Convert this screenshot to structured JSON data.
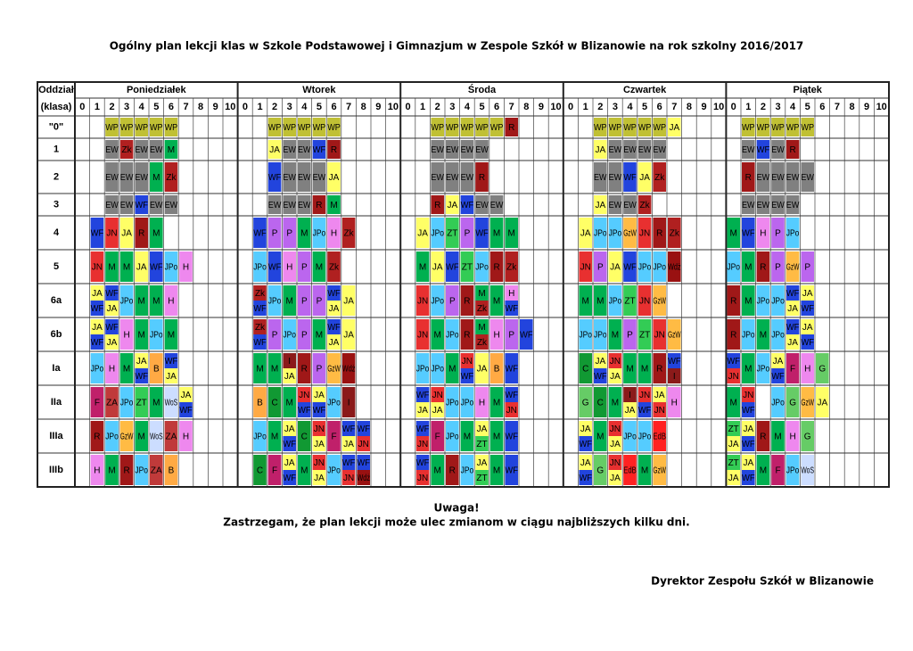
{
  "title": "Ogólny plan lekcji klas w Szkole Podstawowej i Gimnazjum w Zespole Szkół w Blizanowie na rok szkolny 2016/2017",
  "header": {
    "corner": [
      "Oddział",
      "(klasa)"
    ],
    "days": [
      "Poniedziałek",
      "Wtorek",
      "Środa",
      "Czwartek",
      "Piątek"
    ],
    "periods": [
      "0",
      "1",
      "2",
      "3",
      "4",
      "5",
      "6",
      "7",
      "8",
      "9",
      "10"
    ]
  },
  "colors": {
    "WP": "#c0c034",
    "EW": "#808080",
    "Zk": "#b02020",
    "M": "#00b050",
    "WF": "#2244dd",
    "JN": "#e83030",
    "JA": "#ffff66",
    "R": "#a01818",
    "JPo": "#55ccff",
    "H": "#ee88ee",
    "P": "#bb66ee",
    "ZT": "#33cc55",
    "ZA": "#c03a3a",
    "GzW": "#ffbb44",
    "WoS": "#ccddff",
    "B": "#ffaa44",
    "I": "#8b1a1a",
    "C": "#119933",
    "F": "#c0206a",
    "G": "#66cc66",
    "Wdż": "#991111",
    "EdB": "#ff2222"
  },
  "rows": [
    {
      "label": "\"0\"",
      "days": [
        [
          null,
          null,
          "WP",
          "WP",
          "WP",
          "WP",
          "WP",
          null,
          null,
          null,
          null
        ],
        [
          null,
          null,
          "WP",
          "WP",
          "WP",
          "WP",
          "WP",
          null,
          null,
          null,
          null
        ],
        [
          null,
          null,
          "WP",
          "WP",
          "WP",
          "WP",
          "WP",
          "R",
          null,
          null,
          null
        ],
        [
          null,
          null,
          "WP",
          "WP",
          "WP",
          "WP",
          "WP",
          "JA",
          null,
          null,
          null
        ],
        [
          null,
          "WP",
          "WP",
          "WP",
          "WP",
          "WP",
          null,
          null,
          null,
          null,
          null
        ]
      ]
    },
    {
      "label": "1",
      "days": [
        [
          null,
          null,
          "EW",
          "Zk",
          "EW",
          "EW",
          "M",
          null,
          null,
          null,
          null
        ],
        [
          null,
          null,
          "JA",
          "EW",
          "EW",
          "WF",
          "R",
          null,
          null,
          null,
          null
        ],
        [
          null,
          null,
          "EW",
          "EW",
          "EW",
          "EW",
          null,
          null,
          null,
          null,
          null
        ],
        [
          null,
          null,
          "JA",
          "EW",
          "EW",
          "EW",
          "EW",
          null,
          null,
          null,
          null
        ],
        [
          null,
          "EW",
          "WF",
          "EW",
          "R",
          null,
          null,
          null,
          null,
          null,
          null
        ]
      ]
    },
    {
      "label": "2",
      "days": [
        [
          null,
          null,
          "EW",
          "EW",
          "EW",
          "M",
          "Zk",
          null,
          null,
          null,
          null
        ],
        [
          null,
          null,
          "WF",
          "EW",
          "EW",
          "EW",
          "JA",
          null,
          null,
          null,
          null
        ],
        [
          null,
          null,
          "EW",
          "EW",
          "EW",
          "R",
          null,
          null,
          null,
          null,
          null
        ],
        [
          null,
          null,
          "EW",
          "EW",
          "WF",
          "JA",
          "Zk",
          null,
          null,
          null,
          null
        ],
        [
          null,
          "R",
          "EW",
          "EW",
          "EW",
          "EW",
          null,
          null,
          null,
          null,
          null
        ]
      ]
    },
    {
      "label": "3",
      "days": [
        [
          null,
          null,
          "EW",
          "EW",
          "WF",
          "EW",
          "EW",
          null,
          null,
          null,
          null
        ],
        [
          null,
          null,
          "EW",
          "EW",
          "EW",
          "R",
          "M",
          null,
          null,
          null,
          null
        ],
        [
          null,
          null,
          "R",
          "JA",
          "WF",
          "EW",
          "EW",
          null,
          null,
          null,
          null
        ],
        [
          null,
          null,
          "JA",
          "EW",
          "EW",
          "Zk",
          null,
          null,
          null,
          null,
          null
        ],
        [
          null,
          "EW",
          "EW",
          "EW",
          "EW",
          null,
          null,
          null,
          null,
          null,
          null
        ]
      ]
    },
    {
      "label": "4",
      "days": [
        [
          null,
          "WF",
          "JN",
          "JA",
          "R",
          "M",
          null,
          null,
          null,
          null,
          null
        ],
        [
          null,
          "WF",
          "P",
          "P",
          "M",
          "JPo",
          "H",
          "Zk",
          null,
          null,
          null
        ],
        [
          null,
          "JA",
          "JPo",
          "ZT",
          "P",
          "WF",
          "M",
          "M",
          null,
          null,
          null
        ],
        [
          null,
          "JA",
          "JPo",
          "JPo",
          "GzW",
          "JN",
          "R",
          "Zk",
          null,
          null,
          null
        ],
        [
          "M",
          "WF",
          "H",
          "P",
          "JPo",
          null,
          null,
          null,
          null,
          null,
          null
        ]
      ]
    },
    {
      "label": "5",
      "days": [
        [
          null,
          "JN",
          "M",
          "M",
          "JA",
          "WF",
          "JPo",
          "H",
          null,
          null,
          null
        ],
        [
          null,
          "JPo",
          "WF",
          "H",
          "P",
          "M",
          "Zk",
          null,
          null,
          null,
          null
        ],
        [
          null,
          "M",
          "JA",
          "WF",
          "ZT",
          "JPo",
          "R",
          "Zk",
          null,
          null,
          null
        ],
        [
          null,
          "JN",
          "P",
          "JA",
          "WF",
          "JPo",
          "JPo",
          "Wdż",
          null,
          null,
          null
        ],
        [
          "JPo",
          "M",
          "R",
          "P",
          "GzW",
          "P",
          null,
          null,
          null,
          null,
          null
        ]
      ]
    },
    {
      "label": "6a",
      "days": [
        [
          null,
          [
            "JA",
            "WF"
          ],
          [
            "WF",
            "JA"
          ],
          "JPo",
          "M",
          "M",
          "H",
          null,
          null,
          null,
          null
        ],
        [
          null,
          [
            "Zk",
            "WF"
          ],
          "JPo",
          "M",
          "P",
          "P",
          [
            "WF",
            "JA"
          ],
          "JA",
          null,
          null,
          null
        ],
        [
          null,
          "JN",
          "JPo",
          "P",
          "R",
          [
            "M",
            "Zk"
          ],
          "M",
          [
            "H",
            "WF"
          ],
          null,
          null,
          null
        ],
        [
          null,
          "M",
          "M",
          "JPo",
          "ZT",
          "JN",
          "GzW",
          null,
          null,
          null,
          null
        ],
        [
          "R",
          "M",
          "JPo",
          "JPo",
          [
            "WF",
            "JA"
          ],
          [
            "JA",
            "WF"
          ],
          null,
          null,
          null,
          null,
          null
        ]
      ]
    },
    {
      "label": "6b",
      "days": [
        [
          null,
          [
            "JA",
            "WF"
          ],
          [
            "WF",
            "JA"
          ],
          "H",
          "M",
          "JPo",
          "M",
          null,
          null,
          null,
          null
        ],
        [
          null,
          [
            "Zk",
            "WF"
          ],
          "P",
          "JPo",
          "P",
          "M",
          [
            "WF",
            "JA"
          ],
          "JA",
          null,
          null,
          null
        ],
        [
          null,
          "JN",
          "M",
          "JPo",
          "R",
          [
            "M",
            "Zk"
          ],
          "H",
          "P",
          "WF",
          null,
          null
        ],
        [
          null,
          "JPo",
          "JPo",
          "M",
          "P",
          "ZT",
          "JN",
          "GzW",
          null,
          null,
          null
        ],
        [
          "R",
          "JPo",
          "M",
          "JPo",
          [
            "WF",
            "JA"
          ],
          [
            "JA",
            "WF"
          ],
          null,
          null,
          null,
          null,
          null
        ]
      ]
    },
    {
      "label": "Ia",
      "days": [
        [
          null,
          "JPo",
          "H",
          "M",
          [
            "JA",
            "WF"
          ],
          "B",
          [
            "WF",
            "JA"
          ],
          null,
          null,
          null,
          null
        ],
        [
          null,
          "M",
          "M",
          [
            "I",
            "JA"
          ],
          "R",
          "P",
          "GzW",
          "Wdż",
          null,
          null,
          null
        ],
        [
          null,
          "JPo",
          "JPo",
          "M",
          [
            "JN",
            "WF"
          ],
          "JA",
          "B",
          "WF",
          null,
          null,
          null
        ],
        [
          null,
          "C",
          [
            "JA",
            "WF"
          ],
          [
            "JN",
            "JA"
          ],
          "M",
          "M",
          "R",
          [
            "WF",
            "I"
          ],
          null,
          null,
          null
        ],
        [
          [
            "WF",
            "JN"
          ],
          "M",
          "JPo",
          [
            "JA",
            "WF"
          ],
          "F",
          "H",
          "G",
          null,
          null,
          null,
          null
        ]
      ]
    },
    {
      "label": "IIa",
      "days": [
        [
          null,
          "F",
          "ZA",
          "JPo",
          "ZT",
          "M",
          "WoS",
          [
            "JA",
            "WF"
          ],
          null,
          null,
          null
        ],
        [
          null,
          "B",
          "C",
          "M",
          [
            "JN",
            "WF"
          ],
          [
            "JA",
            "WF"
          ],
          "JPo",
          "I",
          null,
          null,
          null
        ],
        [
          null,
          [
            "WF",
            "JA"
          ],
          [
            "JN",
            "JA"
          ],
          "JPo",
          "JPo",
          "H",
          "M",
          [
            "WF",
            "JN"
          ],
          null,
          null,
          null
        ],
        [
          null,
          "G",
          "C",
          "M",
          [
            "I",
            "JA"
          ],
          [
            "JN",
            "WF"
          ],
          [
            "JA",
            "JN"
          ],
          "H",
          null,
          null,
          null
        ],
        [
          "M",
          [
            "JN",
            "WF"
          ],
          null,
          "JPo",
          "G",
          "GzW",
          "JA",
          null,
          null,
          null,
          null
        ]
      ]
    },
    {
      "label": "IIIa",
      "days": [
        [
          null,
          "R",
          "JPo",
          "GzW",
          "M",
          "WoS",
          "ZA",
          "H",
          null,
          null,
          null
        ],
        [
          null,
          "JPo",
          "M",
          [
            "JA",
            "WF"
          ],
          "C",
          [
            "JN",
            "JA"
          ],
          "F",
          [
            "WF",
            "JA"
          ],
          [
            "WF",
            "JN"
          ],
          null,
          null
        ],
        [
          null,
          [
            "WF",
            "JN"
          ],
          "F",
          "JPo",
          "M",
          [
            "JA",
            "ZT"
          ],
          "M",
          "WF",
          null,
          null,
          null
        ],
        [
          null,
          [
            "JA",
            "WF"
          ],
          "M",
          [
            "JN",
            "JA"
          ],
          "JPo",
          "JPo",
          "EdB",
          null,
          null,
          null,
          null
        ],
        [
          [
            "ZT",
            "JA"
          ],
          [
            "JA",
            "WF"
          ],
          "R",
          "M",
          "H",
          "G",
          null,
          null,
          null,
          null,
          null
        ]
      ]
    },
    {
      "label": "IIIb",
      "days": [
        [
          null,
          "H",
          "M",
          "R",
          "JPo",
          "ZA",
          "B",
          null,
          null,
          null,
          null
        ],
        [
          null,
          "C",
          "F",
          [
            "JA",
            "WF"
          ],
          "M",
          [
            "JN",
            "JA"
          ],
          "JPo",
          [
            "WF",
            "JN"
          ],
          [
            "WF",
            "Wdż"
          ],
          null,
          null
        ],
        [
          null,
          [
            "WF",
            "JN"
          ],
          "M",
          "R",
          "JPo",
          [
            "JA",
            "ZT"
          ],
          "M",
          "WF",
          null,
          null,
          null
        ],
        [
          null,
          [
            "JA",
            "WF"
          ],
          "G",
          [
            "JN",
            "JA"
          ],
          "EdB",
          "M",
          "GzW",
          null,
          null,
          null,
          null
        ],
        [
          [
            "ZT",
            "JA"
          ],
          [
            "JA",
            "WF"
          ],
          "M",
          "F",
          "JPo",
          "WoS",
          null,
          null,
          null,
          null,
          null
        ]
      ]
    }
  ],
  "notes": [
    "Uwaga!",
    "Zastrzegam, że plan lekcji może ulec zmianom w ciągu najbliższych kilku dni."
  ],
  "signature": "Dyrektor Zespołu Szkół w Blizanowie"
}
